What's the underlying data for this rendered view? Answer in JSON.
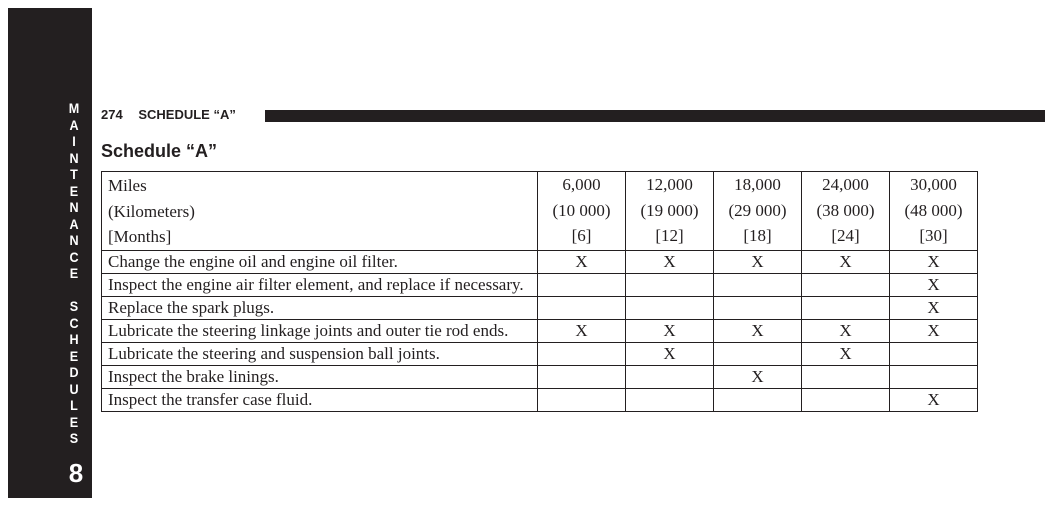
{
  "sidebar": {
    "section_letters": [
      "M",
      "A",
      "I",
      "N",
      "T",
      "E",
      "N",
      "A",
      "N",
      "C",
      "E",
      "",
      "S",
      "C",
      "H",
      "E",
      "D",
      "U",
      "L",
      "E",
      "S"
    ],
    "chapter": "8"
  },
  "header": {
    "page_number": "274",
    "running_title": "SCHEDULE “A”"
  },
  "title": "Schedule “A”",
  "table": {
    "header_labels": [
      "Miles",
      "(Kilometers)",
      "[Months]"
    ],
    "intervals": [
      {
        "miles": "6,000",
        "km": "(10 000)",
        "months": "[6]"
      },
      {
        "miles": "12,000",
        "km": "(19 000)",
        "months": "[12]"
      },
      {
        "miles": "18,000",
        "km": "(29 000)",
        "months": "[18]"
      },
      {
        "miles": "24,000",
        "km": "(38 000)",
        "months": "[24]"
      },
      {
        "miles": "30,000",
        "km": "(48 000)",
        "months": "[30]"
      }
    ],
    "rows": [
      {
        "task": "Change the engine oil and engine oil filter.",
        "marks": [
          "X",
          "X",
          "X",
          "X",
          "X"
        ]
      },
      {
        "task": "Inspect the engine air filter element, and replace if necessary.",
        "marks": [
          "",
          "",
          "",
          "",
          "X"
        ]
      },
      {
        "task": "Replace the spark plugs.",
        "marks": [
          "",
          "",
          "",
          "",
          "X"
        ]
      },
      {
        "task": "Lubricate the steering linkage joints and outer tie rod ends.",
        "marks": [
          "X",
          "X",
          "X",
          "X",
          "X"
        ]
      },
      {
        "task": "Lubricate the steering and suspension ball joints.",
        "marks": [
          "",
          "X",
          "",
          "X",
          ""
        ]
      },
      {
        "task": "Inspect the brake linings.",
        "marks": [
          "",
          "",
          "X",
          "",
          ""
        ]
      },
      {
        "task": "Inspect the transfer case fluid.",
        "marks": [
          "",
          "",
          "",
          "",
          "X"
        ]
      }
    ]
  }
}
